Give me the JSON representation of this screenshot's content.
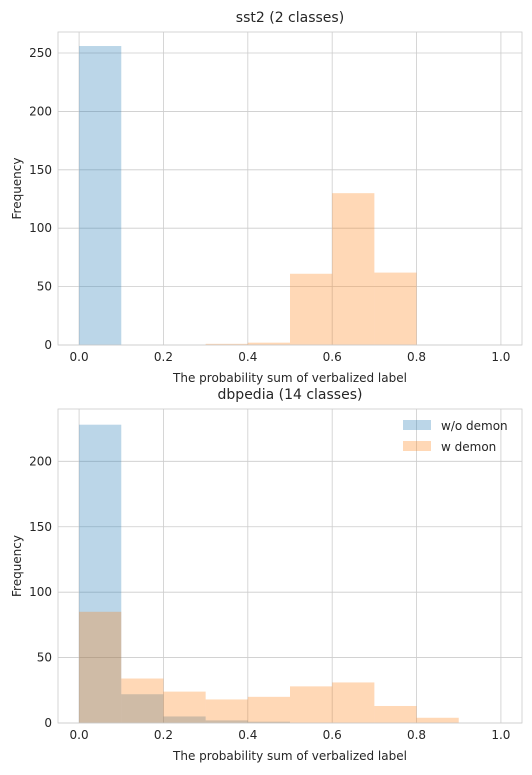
{
  "chart_data": [
    {
      "type": "bar",
      "title": "sst2 (2 classes)",
      "xlabel": "The probability sum of verbalized label",
      "ylabel": "Frequency",
      "xlim": [
        -0.05,
        1.05
      ],
      "ylim": [
        0,
        268
      ],
      "xticks": [
        "0.0",
        "0.2",
        "0.4",
        "0.6",
        "0.8",
        "1.0"
      ],
      "yticks": [
        "0",
        "50",
        "100",
        "150",
        "200",
        "250"
      ],
      "grid": true,
      "bin_edges": [
        0.0,
        0.1,
        0.2,
        0.3,
        0.4,
        0.5,
        0.6,
        0.7,
        0.8,
        0.9,
        1.0
      ],
      "series": [
        {
          "values": [
            256,
            0,
            0,
            0,
            0,
            0,
            0,
            0,
            0,
            0
          ],
          "color": "#1f77b4"
        },
        {
          "values": [
            0,
            0,
            0,
            1,
            2,
            61,
            130,
            62,
            0,
            0
          ],
          "color": "#ff7f0e"
        }
      ]
    },
    {
      "type": "bar",
      "title": "dbpedia (14 classes)",
      "xlabel": "The probability sum of verbalized label",
      "ylabel": "Frequency",
      "xlim": [
        -0.05,
        1.05
      ],
      "ylim": [
        0,
        240
      ],
      "xticks": [
        "0.0",
        "0.2",
        "0.4",
        "0.6",
        "0.8",
        "1.0"
      ],
      "yticks": [
        "0",
        "50",
        "100",
        "150",
        "200"
      ],
      "grid": true,
      "legend": "top-right",
      "bin_edges": [
        0.0,
        0.1,
        0.2,
        0.3,
        0.4,
        0.5,
        0.6,
        0.7,
        0.8,
        0.9,
        1.0
      ],
      "series": [
        {
          "name": "w/o demon",
          "values": [
            228,
            22,
            5,
            2,
            1,
            0,
            0,
            0,
            0,
            0
          ],
          "color": "#1f77b4"
        },
        {
          "name": "w demon",
          "values": [
            85,
            34,
            24,
            18,
            20,
            28,
            31,
            13,
            4,
            0
          ],
          "color": "#ff7f0e"
        }
      ]
    }
  ]
}
